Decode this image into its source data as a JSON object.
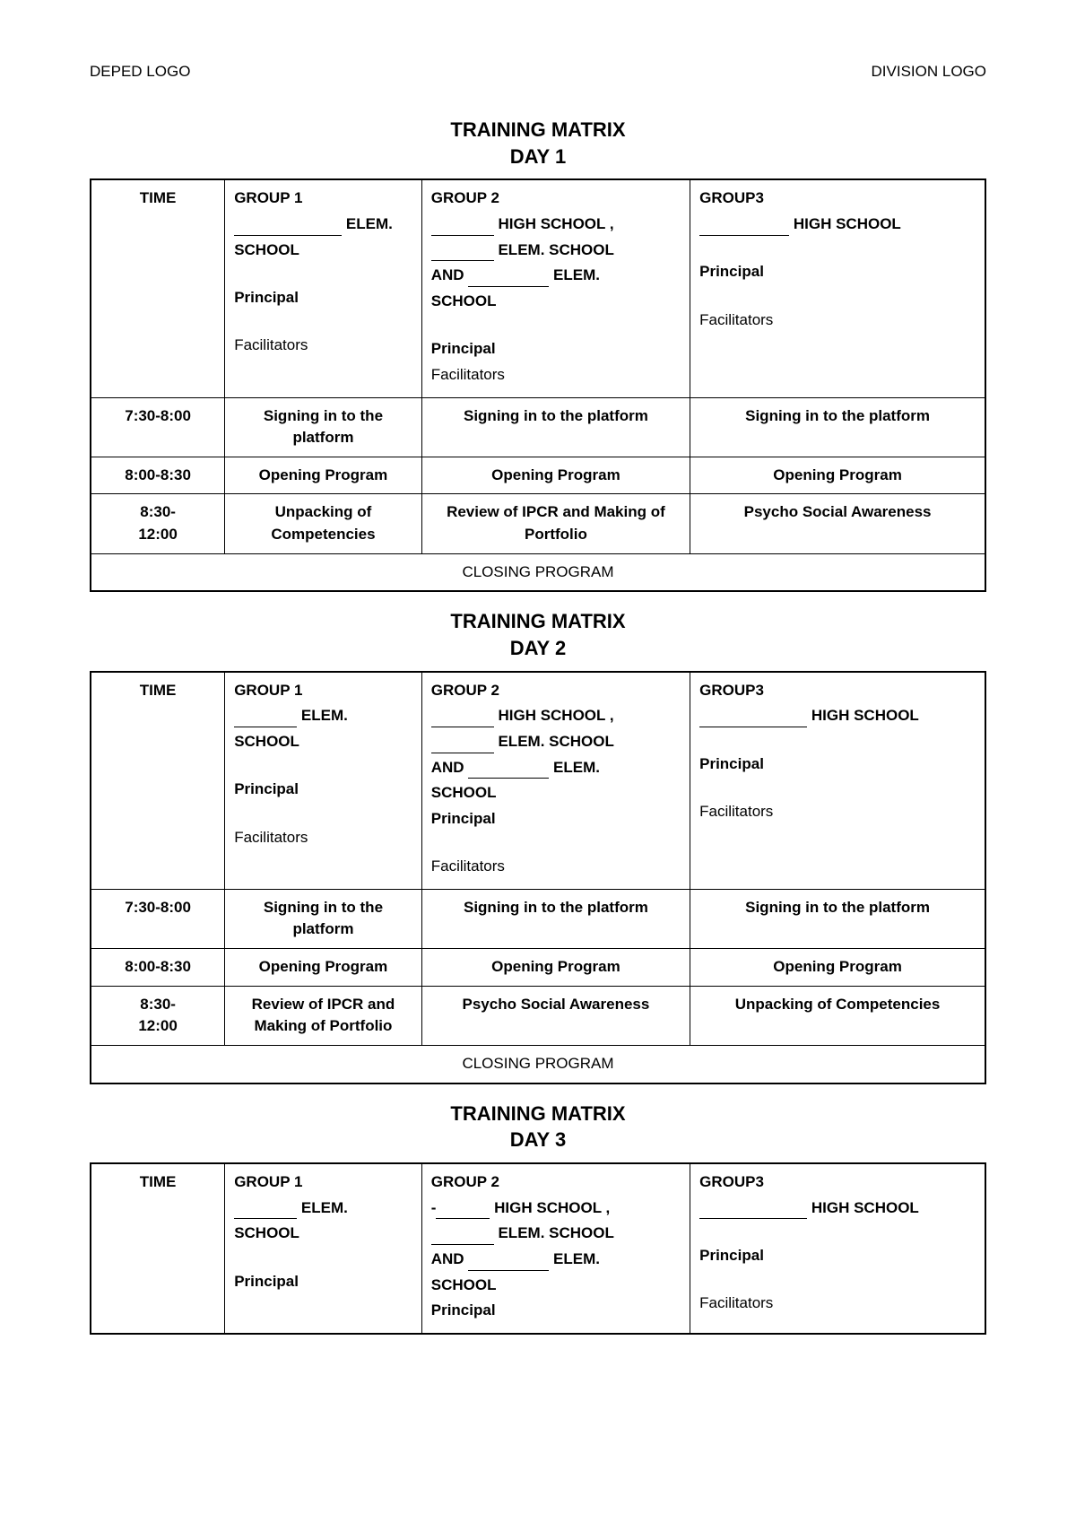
{
  "header": {
    "left": "DEPED LOGO",
    "right": "DIVISION LOGO"
  },
  "labels": {
    "titlePrefix": "TRAINING MATRIX",
    "dayPrefix": "DAY",
    "time": "TIME",
    "group1": "GROUP 1",
    "group2": "GROUP 2",
    "group3": "GROUP3",
    "elem": "ELEM.",
    "school": "SCHOOL",
    "highSchoolComma": "HIGH SCHOOL ,",
    "highSchool": "HIGH SCHOOL",
    "elemSchool": "ELEM. SCHOOL",
    "and": "AND",
    "principal": "Principal",
    "facilitators": "Facilitators",
    "closing": "CLOSING PROGRAM",
    "dash": "-"
  },
  "times": {
    "t1": "7:30-8:00",
    "t2": "8:00-8:30",
    "t3a": "8:30-",
    "t3b": "12:00"
  },
  "day1": {
    "r1g1": "Signing in to the platform",
    "r1g2": "Signing in to the platform",
    "r1g3": "Signing in to the platform",
    "r2g1": "Opening Program",
    "r2g2": "Opening Program",
    "r2g3": "Opening Program",
    "r3g1": "Unpacking of Competencies",
    "r3g2": "Review of IPCR and Making of Portfolio",
    "r3g3": "Psycho Social Awareness"
  },
  "day2": {
    "r1g1": "Signing in to the platform",
    "r1g2": "Signing in to the platform",
    "r1g3": "Signing in to the platform",
    "r2g1": "Opening Program",
    "r2g2": "Opening Program",
    "r2g3": "Opening Program",
    "r3g1": "Review of IPCR and Making of Portfolio",
    "r3g2": "Psycho Social Awareness",
    "r3g3": "Unpacking of Competencies"
  },
  "dayNumbers": {
    "d1": "1",
    "d2": "2",
    "d3": "3"
  }
}
